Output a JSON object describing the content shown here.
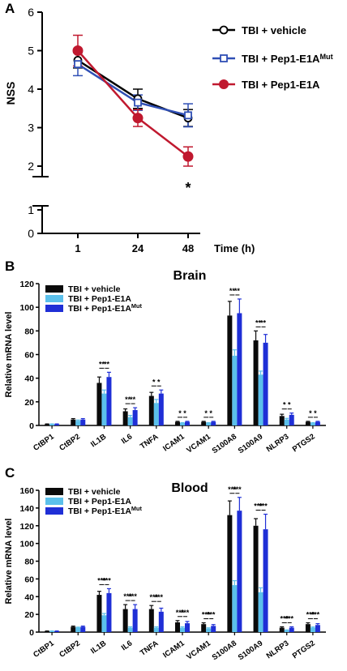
{
  "chart_data": [
    {
      "panel": "A",
      "type": "line",
      "ylabel": "NSS",
      "xlabel": "Time (h)",
      "categories": [
        "1",
        "24",
        "48"
      ],
      "ylim": [
        0,
        6
      ],
      "axis_break": [
        1.5,
        1.75
      ],
      "yticks_upper": [
        "2",
        "3",
        "4",
        "5",
        "6"
      ],
      "yticks_lower": [
        "0",
        "1"
      ],
      "series": [
        {
          "name": "TBI + vehicle",
          "name_sup": "",
          "color": "#000000",
          "marker": "circle-open",
          "values": [
            4.75,
            3.75,
            3.25
          ],
          "errors": [
            0.2,
            0.25,
            0.22
          ]
        },
        {
          "name": "TBI + Pep1-E1A",
          "name_sup": "Mut",
          "color": "#2f4fb5",
          "marker": "square-open",
          "values": [
            4.65,
            3.65,
            3.32
          ],
          "errors": [
            0.3,
            0.2,
            0.3
          ]
        },
        {
          "name": "TBI + Pep1-E1A",
          "name_sup": "",
          "color": "#c0192f",
          "marker": "circle-filled",
          "values": [
            5.0,
            3.25,
            2.25
          ],
          "errors": [
            0.4,
            0.22,
            0.25
          ]
        }
      ],
      "annotations": [
        {
          "category": "48",
          "text": "*"
        }
      ]
    },
    {
      "panel": "B",
      "type": "bar",
      "title": "Brain",
      "ylabel": "Relative mRNA level",
      "ylim": [
        0,
        120
      ],
      "yticks": [
        "0",
        "20",
        "40",
        "60",
        "80",
        "100",
        "120"
      ],
      "categories": [
        "CtBP1",
        "CtBP2",
        "IL1B",
        "IL6",
        "TNFA",
        "ICAM1",
        "VCAM1",
        "S100A8",
        "S100A9",
        "NLRP3",
        "PTGS2"
      ],
      "series": [
        {
          "name": "TBI + vehicle",
          "name_sup": "",
          "color": "#0a0a0a",
          "values": [
            1,
            5,
            36,
            12,
            25,
            3,
            3,
            93,
            72,
            8,
            3
          ],
          "errors": [
            0.3,
            0.8,
            5,
            2,
            3,
            0.5,
            0.5,
            12,
            8,
            1.5,
            0.5
          ]
        },
        {
          "name": "TBI + Pep1-E1A",
          "name_sup": "",
          "color": "#5bc0eb",
          "values": [
            1,
            4,
            27,
            7,
            19,
            2,
            2,
            59,
            43,
            5,
            2
          ],
          "errors": [
            0.3,
            0.6,
            3,
            1.5,
            3,
            0.4,
            0.4,
            5,
            3,
            1,
            0.4
          ]
        },
        {
          "name": "TBI + Pep1-E1A",
          "name_sup": "Mut",
          "color": "#1f2fd6",
          "values": [
            1,
            5,
            41,
            13,
            27,
            3,
            3,
            95,
            70,
            9,
            3
          ],
          "errors": [
            0.3,
            0.8,
            4,
            2,
            3,
            0.5,
            0.5,
            12,
            7,
            1.5,
            0.5
          ]
        }
      ],
      "significance": [
        {
          "category": "IL1B",
          "left": "**",
          "right": "**"
        },
        {
          "category": "IL6",
          "left": "**",
          "right": "**"
        },
        {
          "category": "TNFA",
          "left": "*",
          "right": "*"
        },
        {
          "category": "ICAM1",
          "left": "*",
          "right": "*"
        },
        {
          "category": "VCAM1",
          "left": "*",
          "right": "*"
        },
        {
          "category": "S100A8",
          "left": "**",
          "right": "**"
        },
        {
          "category": "S100A9",
          "left": "**",
          "right": "**"
        },
        {
          "category": "NLRP3",
          "left": "*",
          "right": "*"
        },
        {
          "category": "PTGS2",
          "left": "*",
          "right": "*"
        }
      ]
    },
    {
      "panel": "C",
      "type": "bar",
      "title": "Blood",
      "ylabel": "Relative mRNA level",
      "ylim": [
        0,
        160
      ],
      "yticks": [
        "0",
        "20",
        "40",
        "60",
        "80",
        "100",
        "120",
        "140",
        "160"
      ],
      "categories": [
        "CtBP1",
        "CtBP2",
        "IL1B",
        "IL6",
        "TNFA",
        "ICAM1",
        "VCAM1",
        "S100A8",
        "S100A9",
        "NLRP3",
        "PTGS2"
      ],
      "series": [
        {
          "name": "TBI + vehicle",
          "name_sup": "",
          "color": "#0a0a0a",
          "values": [
            1,
            6,
            42,
            26,
            26,
            11,
            9,
            132,
            120,
            5,
            9
          ],
          "errors": [
            0.3,
            0.8,
            4,
            5,
            4,
            2,
            1.5,
            16,
            8,
            1,
            1.5
          ]
        },
        {
          "name": "TBI + Pep1-E1A",
          "name_sup": "",
          "color": "#5bc0eb",
          "values": [
            1,
            5,
            19,
            5,
            5,
            5,
            4,
            53,
            45,
            2,
            5
          ],
          "errors": [
            0.3,
            0.6,
            2,
            1,
            1,
            1,
            0.8,
            5,
            5,
            0.5,
            0.8
          ]
        },
        {
          "name": "TBI + Pep1-E1A",
          "name_sup": "Mut",
          "color": "#1f2fd6",
          "values": [
            1,
            6,
            44,
            26,
            23,
            10,
            7,
            137,
            116,
            5,
            8
          ],
          "errors": [
            0.3,
            0.8,
            5,
            5,
            4,
            2,
            1.5,
            15,
            17,
            1,
            1.5
          ]
        }
      ],
      "significance": [
        {
          "category": "IL1B",
          "left": "***",
          "right": "***"
        },
        {
          "category": "IL6",
          "left": "***",
          "right": "***"
        },
        {
          "category": "TNFA",
          "left": "***",
          "right": "***"
        },
        {
          "category": "ICAM1",
          "left": "***",
          "right": "***"
        },
        {
          "category": "VCAM1",
          "left": "***",
          "right": "***"
        },
        {
          "category": "S100A8",
          "left": "***",
          "right": "***"
        },
        {
          "category": "S100A9",
          "left": "***",
          "right": "***"
        },
        {
          "category": "NLRP3",
          "left": "***",
          "right": "***"
        },
        {
          "category": "PTGS2",
          "left": "***",
          "right": "***"
        }
      ]
    }
  ]
}
